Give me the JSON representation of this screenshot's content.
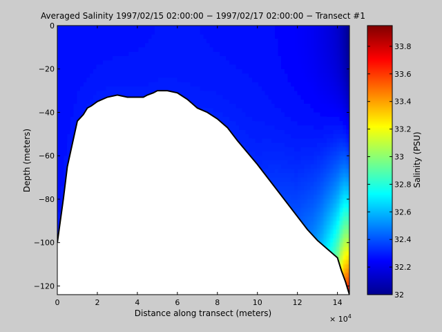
{
  "chart_data": {
    "type": "heatmap",
    "title": "Averaged Salinity  1997/02/15 02:00:00 − 1997/02/17 02:00:00 − Transect #1",
    "xlabel": "Distance along transect (meters)",
    "ylabel": "Depth (meters)",
    "x_multiplier_label": "× 10",
    "x_multiplier_exponent": "4",
    "xlim": [
      0,
      146000
    ],
    "ylim": [
      -124,
      0
    ],
    "x_ticks": [
      0,
      20000,
      40000,
      60000,
      80000,
      100000,
      120000,
      140000
    ],
    "x_tick_labels": [
      "0",
      "2",
      "4",
      "6",
      "8",
      "10",
      "12",
      "14"
    ],
    "y_ticks": [
      0,
      -20,
      -40,
      -60,
      -80,
      -100,
      -120
    ],
    "y_tick_labels": [
      "0",
      "−20",
      "−40",
      "−60",
      "−80",
      "−100",
      "−120"
    ],
    "colorbar": {
      "label": "Salinity (PSU)",
      "range": [
        32.0,
        33.95
      ],
      "ticks": [
        32,
        32.2,
        32.4,
        32.6,
        32.8,
        33,
        33.2,
        33.4,
        33.6,
        33.8
      ],
      "tick_labels": [
        "32",
        "32.2",
        "32.4",
        "32.6",
        "32.8",
        "33",
        "33.2",
        "33.4",
        "33.6",
        "33.8"
      ]
    },
    "bottom_profile": {
      "x": [
        0,
        3000,
        5000,
        10000,
        13000,
        15000,
        17000,
        20000,
        25000,
        30000,
        35000,
        40000,
        43000,
        45000,
        48000,
        50000,
        52000,
        55000,
        60000,
        65000,
        70000,
        75000,
        80000,
        85000,
        90000,
        100000,
        110000,
        120000,
        125000,
        130000,
        135000,
        140000,
        142000,
        144000,
        146000
      ],
      "depth": [
        -100,
        -80,
        -65,
        -44,
        -41,
        -38,
        -37,
        -35,
        -33,
        -32,
        -33,
        -33,
        -33,
        -32,
        -31,
        -30,
        -30,
        -30,
        -31,
        -34,
        -38,
        -40,
        -43,
        -47,
        -53,
        -64,
        -76,
        -88,
        -94,
        -99,
        -103,
        -107,
        -113,
        -118,
        -124
      ]
    },
    "salinity_profile_along_x": {
      "x": [
        0,
        20000,
        60000,
        100000,
        120000,
        128000,
        132000,
        136000,
        140000,
        143000,
        146000
      ],
      "surface": [
        32.26,
        32.27,
        32.28,
        32.27,
        32.24,
        32.22,
        32.2,
        32.18,
        32.15,
        32.1,
        32.02
      ],
      "near_bottom": [
        32.28,
        32.3,
        32.3,
        32.32,
        32.4,
        32.5,
        32.6,
        32.75,
        32.95,
        33.4,
        33.75
      ]
    }
  }
}
